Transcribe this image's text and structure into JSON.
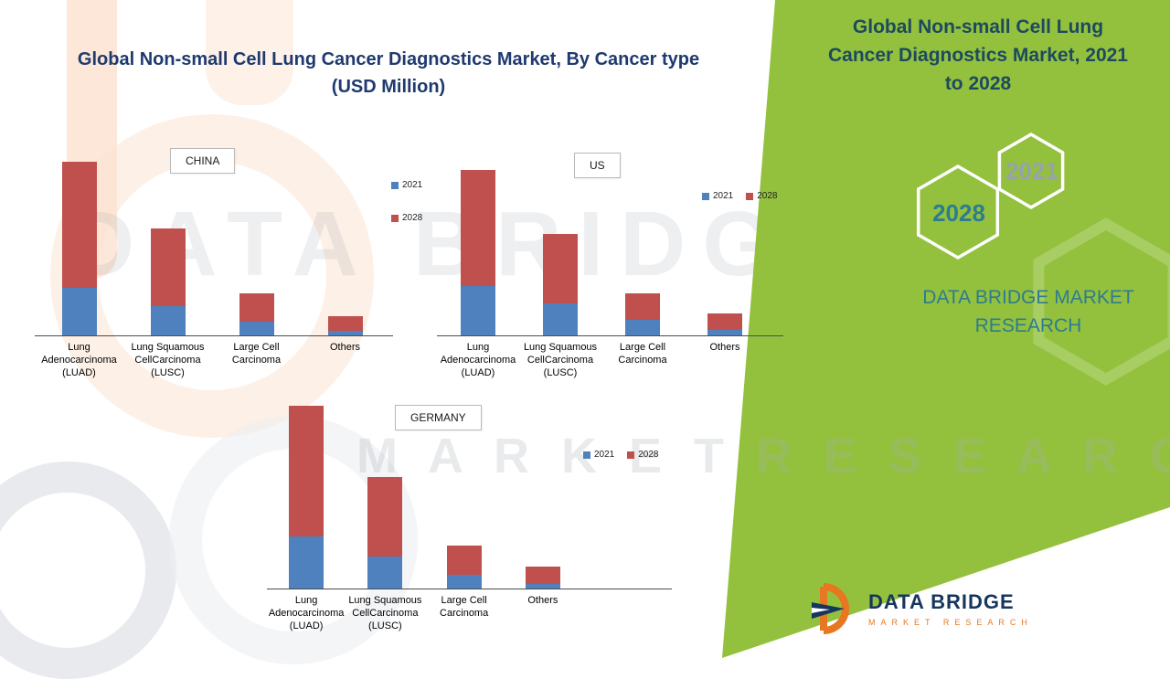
{
  "header": {
    "title": "Global  Non-small Cell Lung Cancer Diagnostics Market, By Cancer type",
    "subtitle": "(USD Million)"
  },
  "side_panel": {
    "title": "Global  Non-small Cell Lung Cancer Diagnostics Market, 2021 to 2028",
    "year_upper": "2021",
    "year_lower": "2028",
    "brand": "DATA BRIDGE MARKET RESEARCH",
    "colors": {
      "background": "#93c13d",
      "title": "#1d4a5f",
      "brand": "#2d7c8f",
      "year_upper": "#97a2ad",
      "year_lower": "#2d7c8f"
    }
  },
  "footer_logo": {
    "name": "DATA BRIDGE",
    "tagline": "MARKET RESEARCH"
  },
  "watermark": {
    "line1": "DATA BRIDGE",
    "line2": "M A R K E T    R E S E A R C H"
  },
  "chart_data": [
    {
      "type": "bar",
      "subtype": "stacked",
      "region": "CHINA",
      "note": "no numeric axis shown in source; values are relative stacked heights",
      "categories": [
        "Lung\nAdenocarcinoma\n(LUAD)",
        "Lung Squamous\nCellCarcinoma\n(LUSC)",
        "Large Cell\nCarcinoma",
        "Others"
      ],
      "series": [
        {
          "name": "2021",
          "color": "#4E81BD",
          "values": [
            52,
            32,
            15,
            5
          ]
        },
        {
          "name": "2028",
          "color": "#C0504D",
          "values": [
            138,
            85,
            31,
            16
          ]
        }
      ],
      "legend_layout": "vertical",
      "legend_position": "right"
    },
    {
      "type": "bar",
      "subtype": "stacked",
      "region": "US",
      "note": "no numeric axis shown in source; values are relative stacked heights",
      "categories": [
        "Lung\nAdenocarcinoma\n(LUAD)",
        "Lung Squamous\nCellCarcinoma\n(LUSC)",
        "Large Cell\nCarcinoma",
        "Others"
      ],
      "series": [
        {
          "name": "2021",
          "color": "#4E81BD",
          "values": [
            54,
            35,
            17,
            6
          ]
        },
        {
          "name": "2028",
          "color": "#C0504D",
          "values": [
            127,
            76,
            29,
            18
          ]
        }
      ],
      "legend_layout": "horizontal",
      "legend_position": "right"
    },
    {
      "type": "bar",
      "subtype": "stacked",
      "region": "GERMANY",
      "note": "no numeric axis shown in source; values are relative stacked heights",
      "categories": [
        "Lung\nAdenocarcinoma\n(LUAD)",
        "Lung Squamous\nCellCarcinoma\n(LUSC)",
        "Large Cell\nCarcinoma",
        "Others"
      ],
      "series": [
        {
          "name": "2021",
          "color": "#4E81BD",
          "values": [
            57,
            35,
            15,
            5
          ]
        },
        {
          "name": "2028",
          "color": "#C0504D",
          "values": [
            143,
            87,
            32,
            19
          ]
        }
      ],
      "legend_layout": "horizontal",
      "legend_position": "right"
    }
  ]
}
